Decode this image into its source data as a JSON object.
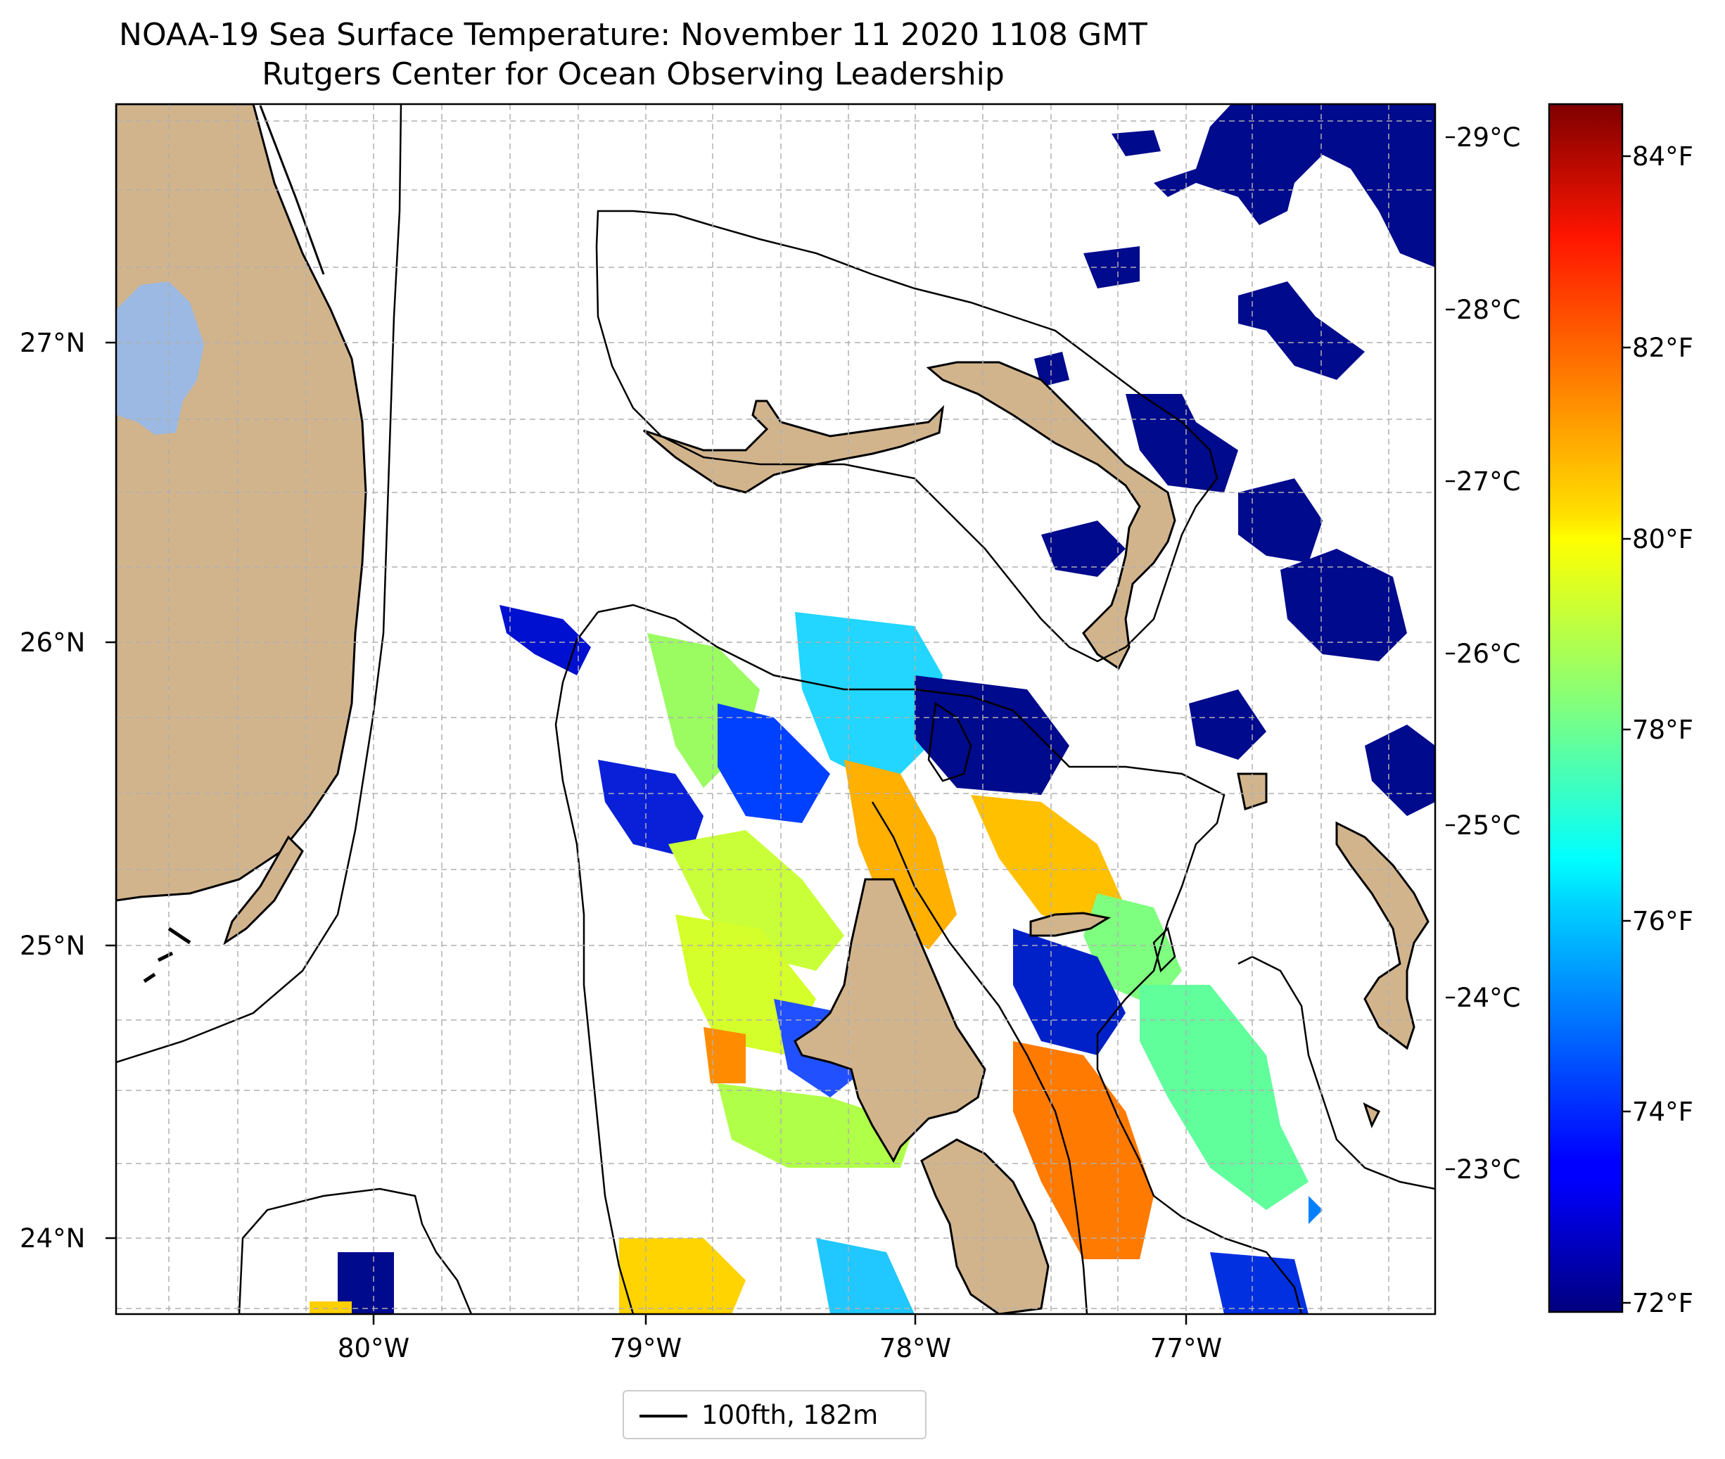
{
  "title": "NOAA-19 Sea Surface Temperature: November 11 2020 1108 GMT",
  "subtitle": "Rutgers Center for Ocean Observing Leadership",
  "map": {
    "lat_labels": [
      "27°N",
      "26°N",
      "25°N",
      "24°N"
    ],
    "lon_labels": [
      "80°W",
      "79°W",
      "78°W",
      "77°W"
    ],
    "celsius_labels": [
      "29°C",
      "28°C",
      "27°C",
      "26°C",
      "25°C",
      "24°C",
      "23°C"
    ],
    "fahrenheit_labels": [
      "84°F",
      "82°F",
      "80°F",
      "78°F",
      "76°F",
      "74°F",
      "72°F"
    ],
    "legend_label": "100fth, 182m",
    "colors": {
      "land": "#d2b48c",
      "lake": "#9bb9e2",
      "cold": "#000a8c",
      "colormap": "jet"
    }
  }
}
